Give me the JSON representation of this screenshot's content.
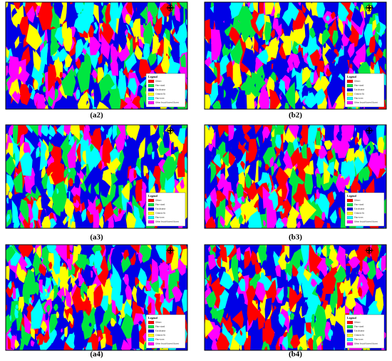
{
  "panels": [
    {
      "label": "(a2)"
    },
    {
      "label": "(b2)"
    },
    {
      "label": "(a3)"
    },
    {
      "label": "(b3)"
    },
    {
      "label": "(a4)"
    },
    {
      "label": "(b4)"
    }
  ],
  "legend": {
    "title": "Legend",
    "items": [
      {
        "name": "Others",
        "color": "#ff0000"
      },
      {
        "name": "Pine stand",
        "color": "#00e640"
      },
      {
        "name": "Eucalyptus",
        "color": "#0000e6"
      },
      {
        "name": "Chinese fir",
        "color": "#ffff00"
      },
      {
        "name": "Pine trees",
        "color": "#00ffff"
      },
      {
        "name": "Other broad-leaved forest",
        "color": "#ff00ff"
      }
    ]
  }
}
